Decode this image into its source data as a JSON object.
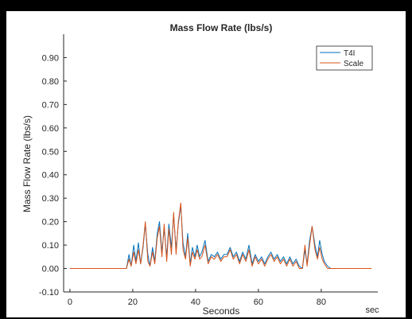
{
  "chart_data": {
    "type": "line",
    "title": "Mass Flow Rate (lbs/s)",
    "xlabel": "Seconds",
    "ylabel": "Mass Flow Rate (lbs/s)",
    "x_unit_label": "sec",
    "xlim": [
      -2,
      98
    ],
    "ylim": [
      -0.1,
      1.0
    ],
    "xticks": [
      0,
      20,
      40,
      60,
      80
    ],
    "yticks": [
      -0.1,
      0.0,
      0.1,
      0.2,
      0.3,
      0.4,
      0.5,
      0.6,
      0.7,
      0.8,
      0.9
    ],
    "ytick_labels": [
      "-0.10",
      "0.00",
      "0.10",
      "0.20",
      "0.30",
      "0.40",
      "0.50",
      "0.60",
      "0.70",
      "0.80",
      "0.90"
    ],
    "grid": false,
    "legend_position": "top-right",
    "series": [
      {
        "name": "T4I",
        "color": "#0072BD",
        "points": [
          [
            0,
            0
          ],
          [
            18,
            0
          ],
          [
            18.8,
            0.06
          ],
          [
            19.5,
            0.01
          ],
          [
            20.3,
            0.1
          ],
          [
            21,
            0.03
          ],
          [
            21.8,
            0.11
          ],
          [
            22.5,
            0.02
          ],
          [
            23.3,
            0.09
          ],
          [
            24,
            0.19
          ],
          [
            24.8,
            0.06
          ],
          [
            25.5,
            0.01
          ],
          [
            26.3,
            0.09
          ],
          [
            27,
            0.03
          ],
          [
            27.8,
            0.15
          ],
          [
            28.5,
            0.2
          ],
          [
            29.3,
            0.07
          ],
          [
            30,
            0.17
          ],
          [
            30.8,
            0.05
          ],
          [
            31.5,
            0.19
          ],
          [
            32.3,
            0.09
          ],
          [
            33,
            0.23
          ],
          [
            33.8,
            0.08
          ],
          [
            34.5,
            0.19
          ],
          [
            35.3,
            0.27
          ],
          [
            36,
            0.11
          ],
          [
            36.8,
            0.05
          ],
          [
            37.5,
            0.15
          ],
          [
            38.3,
            0.02
          ],
          [
            39,
            0.09
          ],
          [
            39.8,
            0.05
          ],
          [
            40.5,
            0.1
          ],
          [
            41.3,
            0.05
          ],
          [
            42,
            0.07
          ],
          [
            43,
            0.12
          ],
          [
            44,
            0.03
          ],
          [
            45,
            0.06
          ],
          [
            46,
            0.05
          ],
          [
            47,
            0.07
          ],
          [
            48,
            0.04
          ],
          [
            49,
            0.06
          ],
          [
            50,
            0.06
          ],
          [
            51,
            0.09
          ],
          [
            52,
            0.05
          ],
          [
            53,
            0.07
          ],
          [
            54,
            0.03
          ],
          [
            55,
            0.07
          ],
          [
            56,
            0.04
          ],
          [
            57,
            0.1
          ],
          [
            58,
            0.02
          ],
          [
            59,
            0.06
          ],
          [
            60,
            0.03
          ],
          [
            61,
            0.05
          ],
          [
            62,
            0.02
          ],
          [
            63,
            0.05
          ],
          [
            64,
            0.07
          ],
          [
            65,
            0.04
          ],
          [
            66,
            0.06
          ],
          [
            67,
            0.03
          ],
          [
            68,
            0.05
          ],
          [
            69,
            0.02
          ],
          [
            70,
            0.05
          ],
          [
            71,
            0.02
          ],
          [
            72,
            0.04
          ],
          [
            73,
            0.01
          ],
          [
            74,
            0
          ],
          [
            74.8,
            0.08
          ],
          [
            75.5,
            0.02
          ],
          [
            76.3,
            0.12
          ],
          [
            77.1,
            0.18
          ],
          [
            78,
            0.1
          ],
          [
            78.8,
            0.05
          ],
          [
            79.5,
            0.12
          ],
          [
            80.3,
            0.06
          ],
          [
            81,
            0.03
          ],
          [
            82,
            0.01
          ],
          [
            83,
            0
          ],
          [
            96,
            0
          ]
        ]
      },
      {
        "name": "Scale",
        "color": "#D95319",
        "points": [
          [
            0,
            0
          ],
          [
            18,
            0
          ],
          [
            18.8,
            0.04
          ],
          [
            19.5,
            0.01
          ],
          [
            20.3,
            0.07
          ],
          [
            21,
            0.02
          ],
          [
            21.8,
            0.08
          ],
          [
            22.5,
            0.02
          ],
          [
            23.3,
            0.1
          ],
          [
            24,
            0.2
          ],
          [
            24.8,
            0.03
          ],
          [
            25.5,
            0.01
          ],
          [
            26.3,
            0.07
          ],
          [
            27,
            0.02
          ],
          [
            27.8,
            0.13
          ],
          [
            28.5,
            0.18
          ],
          [
            29.3,
            0.05
          ],
          [
            30,
            0.19
          ],
          [
            30.8,
            0.03
          ],
          [
            31.5,
            0.17
          ],
          [
            32.3,
            0.06
          ],
          [
            33,
            0.24
          ],
          [
            33.8,
            0.06
          ],
          [
            34.5,
            0.2
          ],
          [
            35.3,
            0.28
          ],
          [
            36,
            0.08
          ],
          [
            36.8,
            0.04
          ],
          [
            37.5,
            0.13
          ],
          [
            38.3,
            0.01
          ],
          [
            39,
            0.07
          ],
          [
            39.8,
            0.04
          ],
          [
            40.5,
            0.08
          ],
          [
            41.3,
            0.04
          ],
          [
            42,
            0.05
          ],
          [
            43,
            0.1
          ],
          [
            44,
            0.02
          ],
          [
            45,
            0.05
          ],
          [
            46,
            0.04
          ],
          [
            47,
            0.06
          ],
          [
            48,
            0.03
          ],
          [
            49,
            0.05
          ],
          [
            50,
            0.05
          ],
          [
            51,
            0.08
          ],
          [
            52,
            0.04
          ],
          [
            53,
            0.06
          ],
          [
            54,
            0.02
          ],
          [
            55,
            0.06
          ],
          [
            56,
            0.03
          ],
          [
            57,
            0.08
          ],
          [
            58,
            0.01
          ],
          [
            59,
            0.05
          ],
          [
            60,
            0.02
          ],
          [
            61,
            0.04
          ],
          [
            62,
            0.01
          ],
          [
            63,
            0.04
          ],
          [
            64,
            0.06
          ],
          [
            65,
            0.03
          ],
          [
            66,
            0.05
          ],
          [
            67,
            0.02
          ],
          [
            68,
            0.04
          ],
          [
            69,
            0.01
          ],
          [
            70,
            0.04
          ],
          [
            71,
            0.01
          ],
          [
            72,
            0.03
          ],
          [
            73,
            0
          ],
          [
            74,
            0
          ],
          [
            74.8,
            0.1
          ],
          [
            75.5,
            0.01
          ],
          [
            76.3,
            0.1
          ],
          [
            77.1,
            0.18
          ],
          [
            78,
            0.08
          ],
          [
            78.8,
            0.04
          ],
          [
            79.5,
            0.09
          ],
          [
            80.3,
            0.04
          ],
          [
            81,
            0.02
          ],
          [
            82,
            0
          ],
          [
            83,
            0
          ],
          [
            96,
            0
          ]
        ]
      }
    ]
  }
}
